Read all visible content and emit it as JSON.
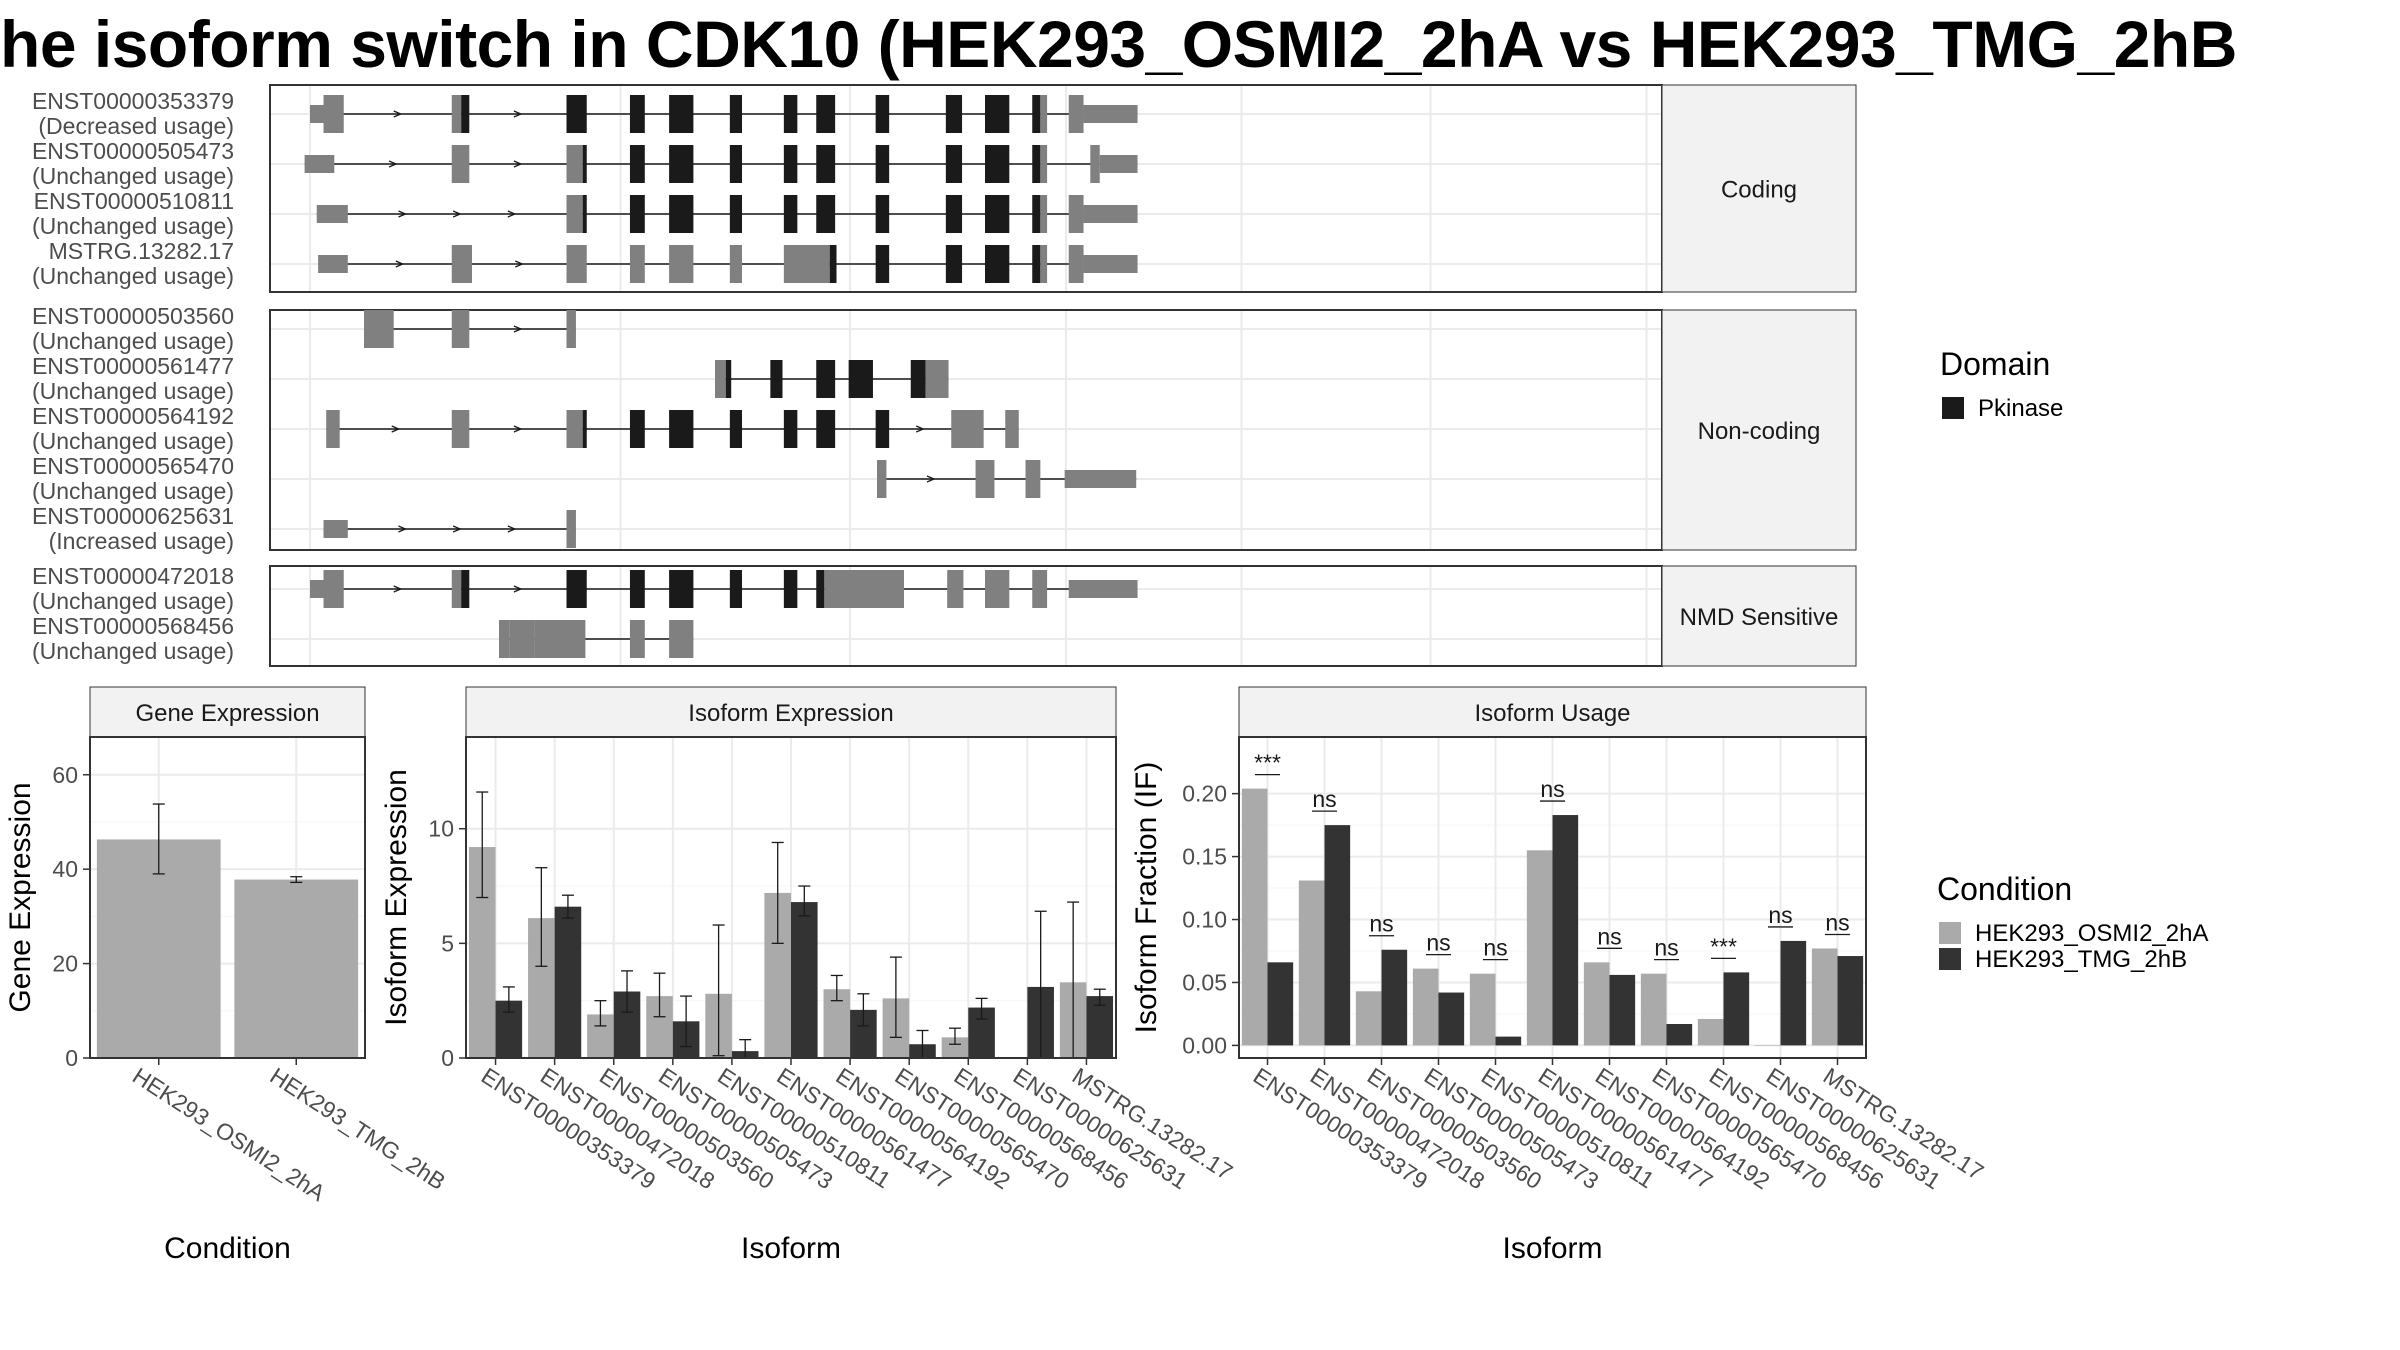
{
  "title": "he isoform switch in CDK10 (HEK293_OSMI2_2hA vs HEK293_TMG_2hB",
  "colors": {
    "utr": "#808080",
    "cds": "#808080",
    "domain": "#1a1a1a",
    "cond_a": "#aaaaaa",
    "cond_b": "#333333",
    "strip_fill": "#f2f2f2",
    "grid": "#ebebeb"
  },
  "legends": {
    "domain": {
      "title": "Domain",
      "entries": [
        {
          "label": "Pkinase",
          "color": "#1a1a1a"
        }
      ]
    },
    "condition": {
      "title": "Condition",
      "entries": [
        {
          "label": "HEK293_OSMI2_2hA",
          "color": "#aaaaaa"
        },
        {
          "label": "HEK293_TMG_2hB",
          "color": "#333333"
        }
      ]
    }
  },
  "chart_data": [
    {
      "type": "gene_structure",
      "panels": [
        {
          "label": "Coding",
          "transcripts": [
            {
              "id": "ENST00000353379",
              "usage": "(Decreased usage)"
            },
            {
              "id": "ENST00000505473",
              "usage": "(Unchanged usage)"
            },
            {
              "id": "ENST00000510811",
              "usage": "(Unchanged usage)"
            },
            {
              "id": "MSTRG.13282.17",
              "usage": "(Unchanged usage)"
            }
          ]
        },
        {
          "label": "Non-coding",
          "transcripts": [
            {
              "id": "ENST00000503560",
              "usage": "(Unchanged usage)"
            },
            {
              "id": "ENST00000561477",
              "usage": "(Unchanged usage)"
            },
            {
              "id": "ENST00000564192",
              "usage": "(Unchanged usage)"
            },
            {
              "id": "ENST00000565470",
              "usage": "(Unchanged usage)"
            },
            {
              "id": "ENST00000625631",
              "usage": "(Increased usage)"
            }
          ]
        },
        {
          "label": "NMD Sensitive",
          "transcripts": [
            {
              "id": "ENST00000472018",
              "usage": "(Unchanged usage)"
            },
            {
              "id": "ENST00000568456",
              "usage": "(Unchanged usage)"
            }
          ]
        }
      ],
      "legend": "Domain"
    },
    {
      "type": "bar",
      "strip": "Gene Expression",
      "xlabel": "Condition",
      "ylabel": "Gene Expression",
      "ylim": [
        0,
        68
      ],
      "yticks": [
        0,
        20,
        40,
        60
      ],
      "categories": [
        "HEK293_OSMI2_2hA",
        "HEK293_TMG_2hB"
      ],
      "series": [
        {
          "values": [
            46.3,
            37.8
          ],
          "err_low": [
            39.0,
            37.2
          ],
          "err_high": [
            53.8,
            38.4
          ]
        }
      ]
    },
    {
      "type": "bar",
      "strip": "Isoform Expression",
      "xlabel": "Isoform",
      "ylabel": "Isoform Expression",
      "ylim": [
        0,
        14
      ],
      "yticks": [
        0,
        5,
        10
      ],
      "categories": [
        "ENST00000353379",
        "ENST00000472018",
        "ENST00000503560",
        "ENST00000505473",
        "ENST00000510811",
        "ENST00000561477",
        "ENST00000564192",
        "ENST00000565470",
        "ENST00000568456",
        "ENST00000625631",
        "MSTRG.13282.17"
      ],
      "series": [
        {
          "name": "HEK293_OSMI2_2hA",
          "values": [
            9.2,
            6.1,
            1.9,
            2.7,
            2.8,
            7.2,
            3.0,
            2.6,
            0.9,
            0.0,
            3.3
          ],
          "err_low": [
            7.0,
            4.0,
            1.4,
            1.8,
            0.1,
            5.0,
            2.5,
            0.9,
            0.6,
            0.0,
            0.0
          ],
          "err_high": [
            11.6,
            8.3,
            2.5,
            3.7,
            5.8,
            9.4,
            3.6,
            4.4,
            1.3,
            0.0,
            6.8
          ]
        },
        {
          "name": "HEK293_TMG_2hB",
          "values": [
            2.5,
            6.6,
            2.9,
            1.6,
            0.3,
            6.8,
            2.1,
            0.6,
            2.2,
            3.1,
            2.7
          ],
          "err_low": [
            2.0,
            6.1,
            2.0,
            0.5,
            0.0,
            6.2,
            1.4,
            0.0,
            1.7,
            0.0,
            2.3
          ],
          "err_high": [
            3.1,
            7.1,
            3.8,
            2.7,
            0.8,
            7.5,
            2.8,
            1.2,
            2.6,
            6.4,
            3.0
          ]
        }
      ]
    },
    {
      "type": "bar",
      "strip": "Isoform Usage",
      "xlabel": "Isoform",
      "ylabel": "Isoform Fraction (IF)",
      "ylim": [
        -0.01,
        0.245
      ],
      "yticks": [
        0.0,
        0.05,
        0.1,
        0.15,
        0.2
      ],
      "yticklabels": [
        "0.00",
        "0.05",
        "0.10",
        "0.15",
        "0.20"
      ],
      "categories": [
        "ENST00000353379",
        "ENST00000472018",
        "ENST00000503560",
        "ENST00000505473",
        "ENST00000510811",
        "ENST00000561477",
        "ENST00000564192",
        "ENST00000565470",
        "ENST00000568456",
        "ENST00000625631",
        "MSTRG.13282.17"
      ],
      "series": [
        {
          "name": "HEK293_OSMI2_2hA",
          "values": [
            0.204,
            0.131,
            0.043,
            0.061,
            0.057,
            0.155,
            0.066,
            0.057,
            0.021,
            0.0,
            0.077
          ]
        },
        {
          "name": "HEK293_TMG_2hB",
          "values": [
            0.066,
            0.175,
            0.076,
            0.042,
            0.007,
            0.183,
            0.056,
            0.017,
            0.058,
            0.083,
            0.071
          ]
        }
      ],
      "annotations": [
        "***",
        "ns",
        "ns",
        "ns",
        "ns",
        "ns",
        "ns",
        "ns",
        "***",
        "ns",
        "ns"
      ]
    }
  ]
}
